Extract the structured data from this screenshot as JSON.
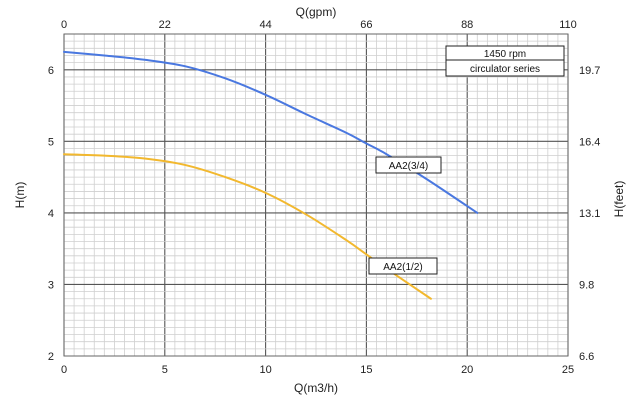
{
  "chart_data": {
    "type": "line",
    "xlabel_bottom": "Q(m3/h)",
    "xlabel_top": "Q(gpm)",
    "ylabel_left": "H(m)",
    "ylabel_right": "H(feet)",
    "xlim": [
      0,
      25
    ],
    "ylim": [
      2,
      6.5
    ],
    "x_ticks_bottom": [
      "0",
      "5",
      "10",
      "15",
      "20",
      "25"
    ],
    "x_ticks_bottom_values": [
      0,
      5,
      10,
      15,
      20,
      25
    ],
    "x_ticks_top": [
      "0",
      "22",
      "44",
      "66",
      "88",
      "110"
    ],
    "x_ticks_top_values": [
      0,
      5,
      10,
      15,
      20,
      25
    ],
    "y_ticks_left": [
      "2",
      "3",
      "4",
      "5",
      "6"
    ],
    "y_ticks_left_values": [
      2,
      3,
      4,
      5,
      6
    ],
    "y_ticks_right": [
      "6.6",
      "9.8",
      "13.1",
      "16.4",
      "19.7"
    ],
    "y_ticks_right_values": [
      2,
      3,
      4,
      5,
      6
    ],
    "grid": true,
    "legend_box": {
      "line1": "1450 rpm",
      "line2": "circulator series"
    },
    "series": [
      {
        "name": "AA2(3/4)",
        "color": "#4a78e0",
        "x": [
          0,
          2,
          4,
          6,
          8,
          10,
          12,
          14,
          15,
          16,
          18,
          20.5
        ],
        "y": [
          6.25,
          6.2,
          6.14,
          6.05,
          5.88,
          5.65,
          5.38,
          5.12,
          4.97,
          4.82,
          4.47,
          4.0
        ]
      },
      {
        "name": "AA2(1/2)",
        "color": "#f2b82e",
        "x": [
          0,
          2,
          4,
          6,
          8,
          10,
          12,
          14,
          15,
          16,
          18.2
        ],
        "y": [
          4.82,
          4.8,
          4.76,
          4.67,
          4.5,
          4.28,
          3.98,
          3.62,
          3.42,
          3.22,
          2.8
        ]
      }
    ],
    "annotations": [
      {
        "text": "AA2(3/4)",
        "series": "AA2(3/4)"
      },
      {
        "text": "AA2(1/2)",
        "series": "AA2(1/2)"
      }
    ]
  }
}
